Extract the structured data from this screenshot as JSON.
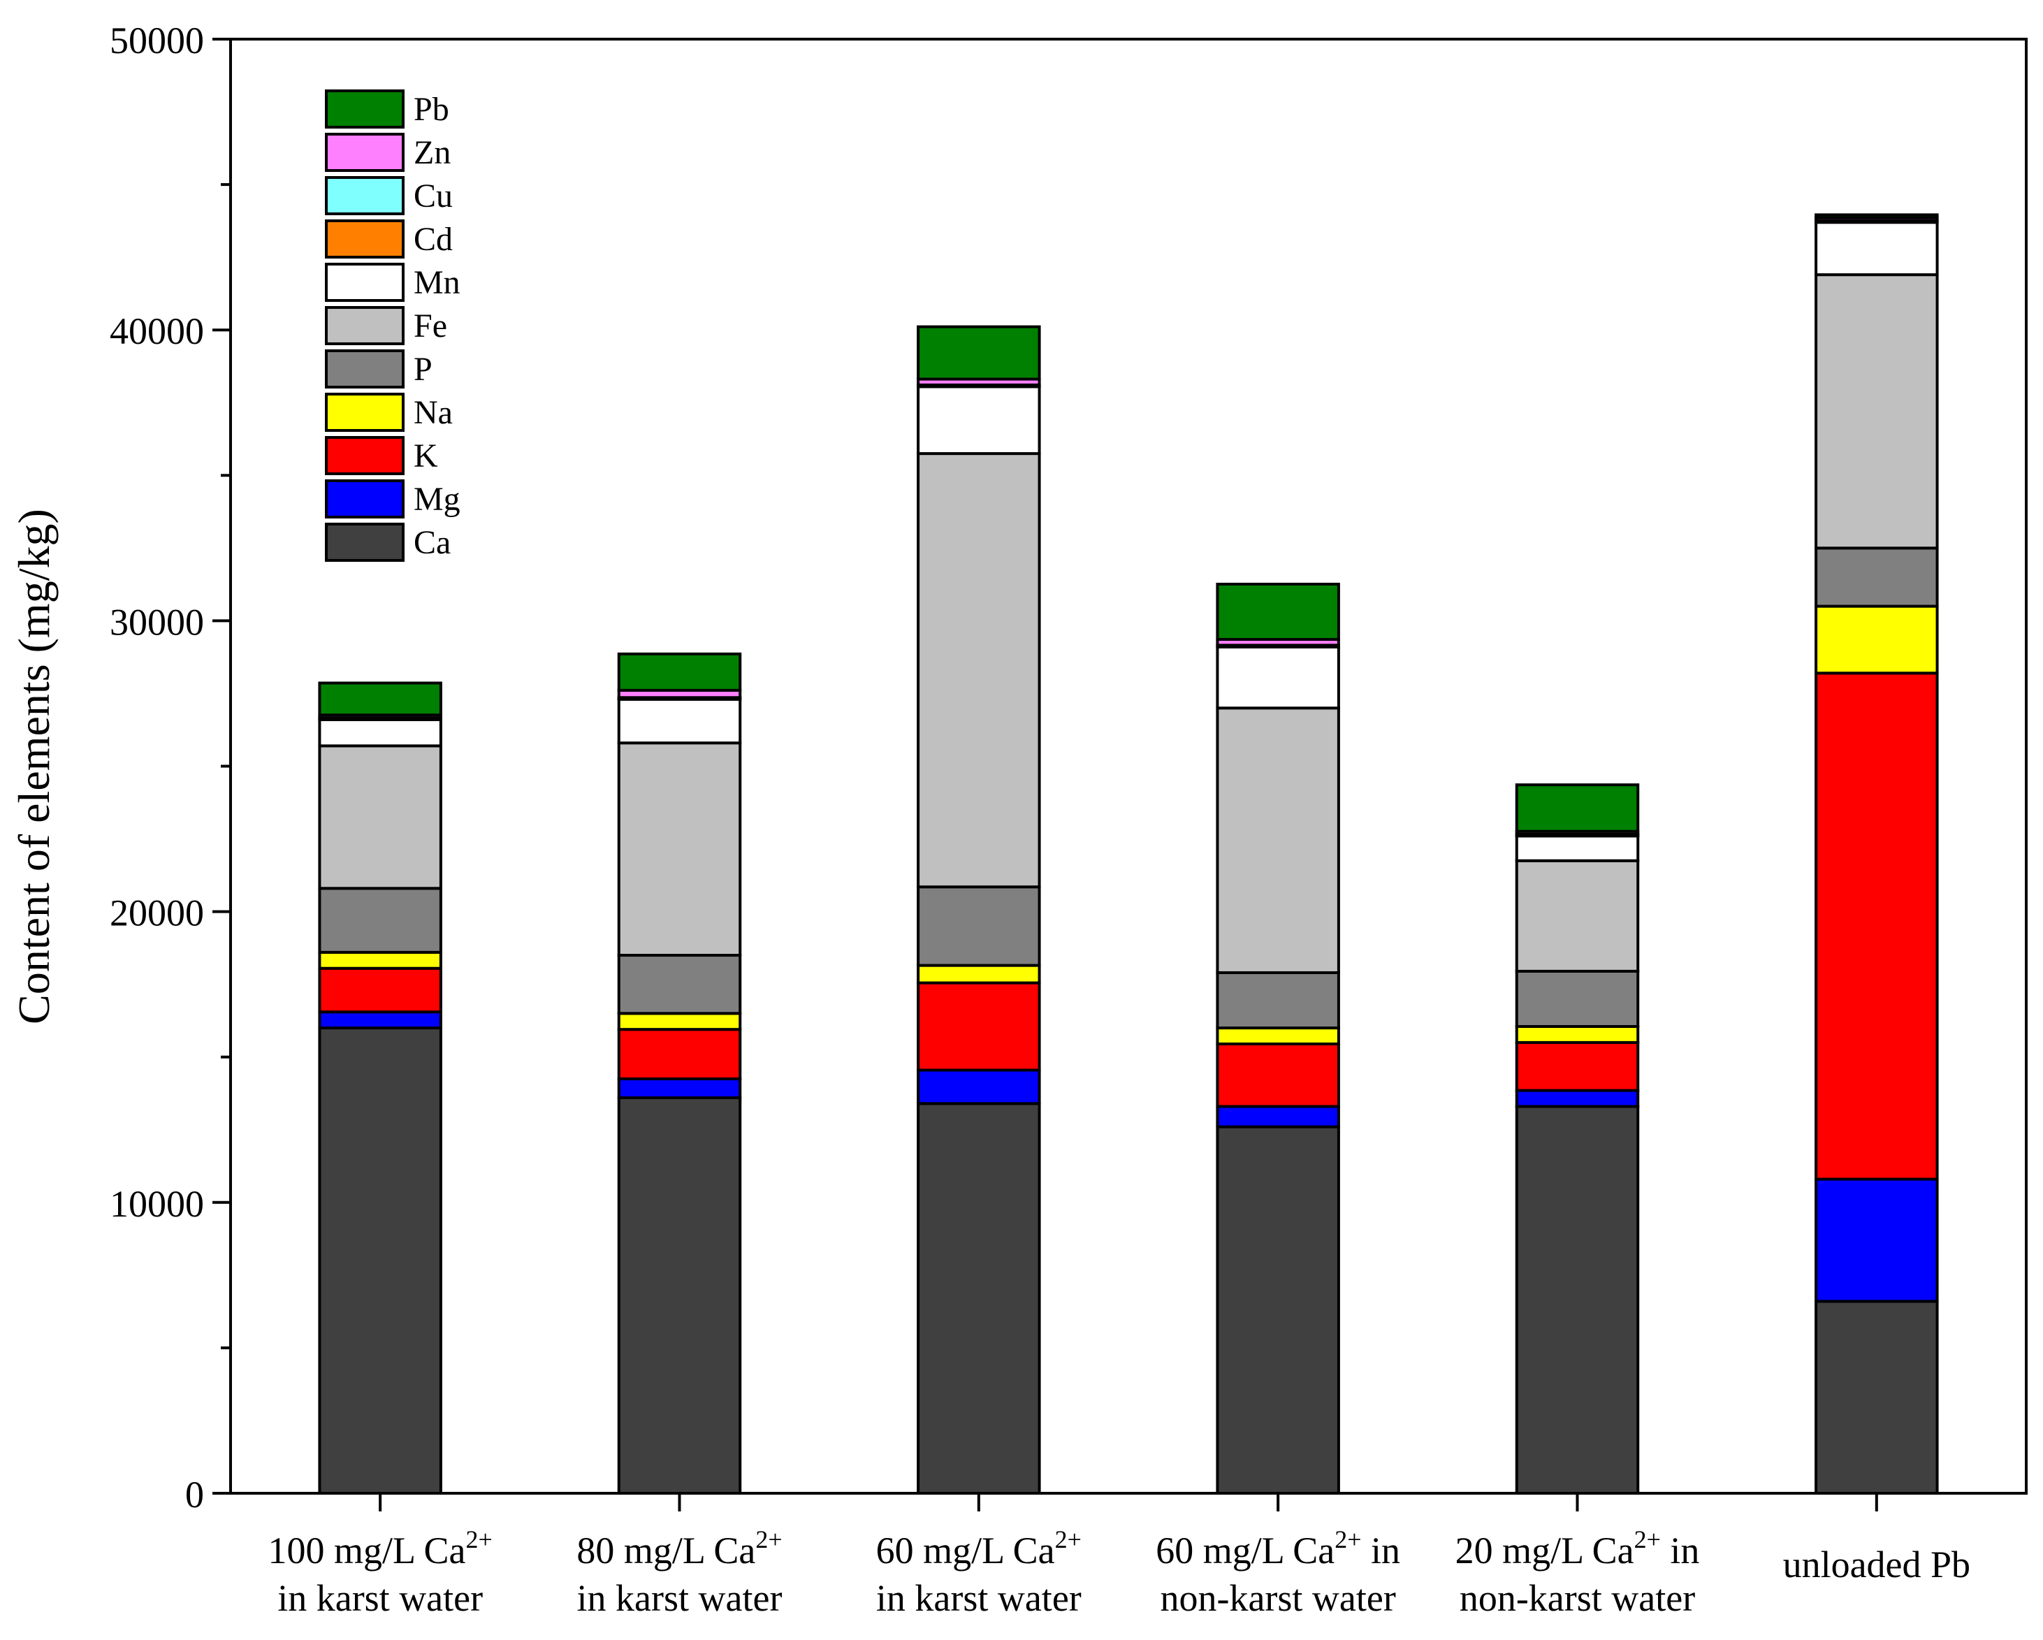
{
  "chart_data": {
    "type": "bar",
    "stacked": true,
    "title": "",
    "xlabel": "",
    "ylabel": "Content of elements (mg/kg)",
    "ylim": [
      0,
      50000
    ],
    "yticks": [
      0,
      10000,
      20000,
      30000,
      40000,
      50000
    ],
    "ytick_labels": [
      "0",
      "10000",
      "20000",
      "30000",
      "40000",
      "50000"
    ],
    "legend_position": "top-left",
    "categories": [
      {
        "line1_pre": "100 mg/L Ca",
        "line1_sup": "2+",
        "line1_post": "",
        "line2": "in karst water"
      },
      {
        "line1_pre": "80 mg/L Ca",
        "line1_sup": "2+",
        "line1_post": "",
        "line2": "in karst water"
      },
      {
        "line1_pre": "60 mg/L Ca",
        "line1_sup": "2+",
        "line1_post": "",
        "line2": "in karst water"
      },
      {
        "line1_pre": "60 mg/L Ca",
        "line1_sup": "2+",
        "line1_post": " in",
        "line2": "non-karst water"
      },
      {
        "line1_pre": "20 mg/L Ca",
        "line1_sup": "2+",
        "line1_post": " in",
        "line2": "non-karst water"
      },
      {
        "line1_pre": "unloaded Pb",
        "line1_sup": "",
        "line1_post": "",
        "line2": ""
      }
    ],
    "series": [
      {
        "name": "Ca",
        "color": "#404040",
        "values": [
          16000,
          13600,
          13400,
          12600,
          13300,
          6600
        ]
      },
      {
        "name": "Mg",
        "color": "#0000ff",
        "values": [
          550,
          650,
          1150,
          700,
          550,
          4200
        ]
      },
      {
        "name": "K",
        "color": "#ff0000",
        "values": [
          1500,
          1700,
          3000,
          2150,
          1650,
          17400
        ]
      },
      {
        "name": "Na",
        "color": "#ffff00",
        "values": [
          550,
          550,
          600,
          550,
          550,
          2300
        ]
      },
      {
        "name": "P",
        "color": "#808080",
        "values": [
          2200,
          2000,
          2700,
          1900,
          1900,
          2000
        ]
      },
      {
        "name": "Fe",
        "color": "#c0c0c0",
        "values": [
          4900,
          7300,
          14900,
          9100,
          3800,
          9400
        ]
      },
      {
        "name": "Mn",
        "color": "#ffffff",
        "values": [
          900,
          1500,
          2300,
          2100,
          850,
          1800
        ]
      },
      {
        "name": "Cd",
        "color": "#ff8000",
        "values": [
          30,
          30,
          30,
          30,
          30,
          30
        ]
      },
      {
        "name": "Cu",
        "color": "#80ffff",
        "values": [
          30,
          30,
          30,
          30,
          30,
          30
        ]
      },
      {
        "name": "Zn",
        "color": "#ff80ff",
        "values": [
          100,
          250,
          200,
          200,
          100,
          100
        ]
      },
      {
        "name": "Pb",
        "color": "#008000",
        "values": [
          1100,
          1250,
          1800,
          1900,
          1600,
          100
        ]
      }
    ],
    "legend_order": [
      "Pb",
      "Zn",
      "Cu",
      "Cd",
      "Mn",
      "Fe",
      "P",
      "Na",
      "K",
      "Mg",
      "Ca"
    ]
  }
}
